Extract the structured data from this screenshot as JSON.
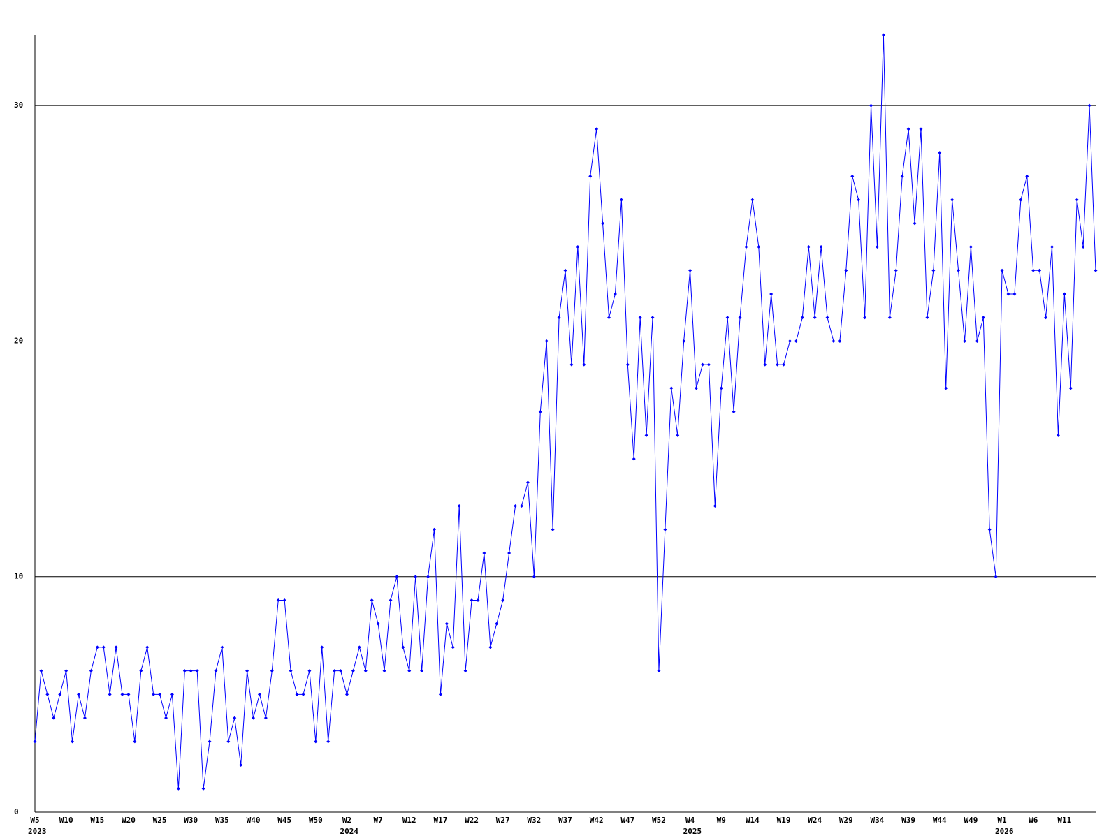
{
  "chart_data": {
    "type": "line",
    "categories": [
      "W5",
      null,
      null,
      null,
      null,
      "W10",
      null,
      null,
      null,
      null,
      "W15",
      null,
      null,
      null,
      null,
      "W20",
      null,
      null,
      null,
      null,
      "W25",
      null,
      null,
      null,
      null,
      "W30",
      null,
      null,
      null,
      null,
      "W35",
      null,
      null,
      null,
      null,
      "W40",
      null,
      null,
      null,
      null,
      "W45",
      null,
      null,
      null,
      null,
      "W50",
      null,
      null,
      null,
      null,
      "W2",
      null,
      null,
      null,
      null,
      "W7",
      null,
      null,
      null,
      null,
      "W12",
      null,
      null,
      null,
      null,
      "W17",
      null,
      null,
      null,
      null,
      "W22",
      null,
      null,
      null,
      null,
      "W27",
      null,
      null,
      null,
      null,
      "W32",
      null,
      null,
      null,
      null,
      "W37",
      null,
      null,
      null,
      null,
      "W42",
      null,
      null,
      null,
      null,
      "W47",
      null,
      null,
      null,
      null,
      "W52",
      null,
      null,
      null,
      null,
      "W4",
      null,
      null,
      null,
      null,
      "W9",
      null,
      null,
      null,
      null,
      "W14",
      null,
      null,
      null,
      null,
      "W19",
      null,
      null,
      null,
      null,
      "W24",
      null,
      null,
      null,
      null,
      "W29",
      null,
      null,
      null,
      null,
      "W34",
      null,
      null,
      null,
      null,
      "W39",
      null,
      null,
      null,
      null,
      "W44",
      null,
      null,
      null,
      null,
      "W49",
      null,
      null,
      null,
      null,
      "W1",
      null,
      null,
      null,
      null,
      "W6",
      null,
      null,
      null,
      null,
      "W11",
      null,
      null,
      null,
      null,
      null
    ],
    "x_group_labels": [
      "2023",
      "2024",
      "2025",
      "2026"
    ],
    "values": [
      3,
      6,
      5,
      4,
      5,
      6,
      3,
      5,
      4,
      6,
      7,
      7,
      5,
      7,
      5,
      5,
      3,
      6,
      7,
      5,
      5,
      4,
      5,
      1,
      6,
      6,
      6,
      1,
      3,
      6,
      7,
      3,
      4,
      2,
      6,
      4,
      5,
      4,
      6,
      9,
      9,
      6,
      5,
      5,
      6,
      3,
      7,
      3,
      6,
      6,
      5,
      6,
      7,
      6,
      9,
      8,
      6,
      9,
      10,
      7,
      6,
      10,
      6,
      10,
      12,
      5,
      8,
      7,
      13,
      6,
      9,
      9,
      11,
      7,
      8,
      9,
      11,
      13,
      13,
      14,
      10,
      17,
      20,
      12,
      21,
      23,
      19,
      24,
      19,
      27,
      29,
      25,
      21,
      22,
      26,
      19,
      15,
      21,
      16,
      21,
      6,
      12,
      18,
      16,
      20,
      23,
      18,
      19,
      19,
      13,
      18,
      21,
      17,
      21,
      24,
      26,
      24,
      19,
      22,
      19,
      19,
      20,
      20,
      21,
      24,
      21,
      24,
      21,
      20,
      20,
      23,
      27,
      26,
      21,
      30,
      24,
      33,
      21,
      23,
      27,
      29,
      25,
      29,
      21,
      23,
      28,
      18,
      26,
      23,
      20,
      24,
      20,
      21,
      12,
      10,
      23,
      22,
      22,
      26,
      27,
      23,
      23,
      21,
      24,
      16,
      22,
      18,
      26,
      24,
      30,
      23
    ],
    "color": "#0000ff",
    "ylim": [
      0,
      33
    ],
    "yticks": [
      0,
      10,
      20,
      30
    ],
    "grid": true
  }
}
